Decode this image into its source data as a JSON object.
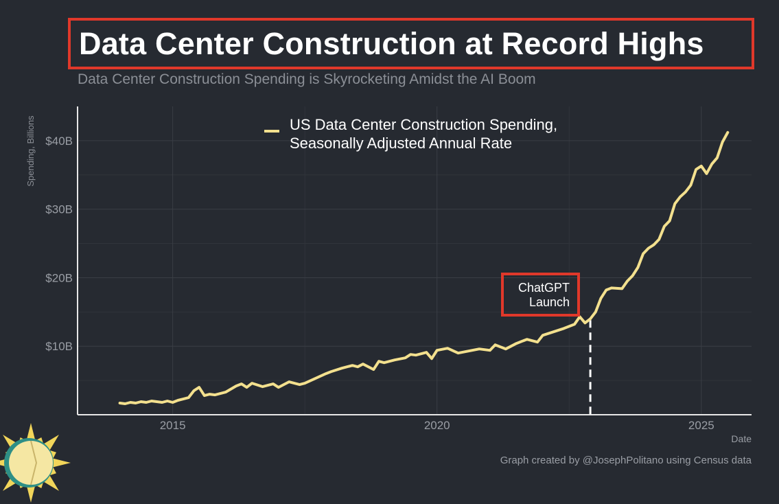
{
  "title": "Data Center Construction at Record Highs",
  "subtitle": "Data Center Construction Spending is Skyrocketing Amidst the AI Boom",
  "credit": "Graph created by @JosephPolitano using Census data",
  "colors": {
    "background": "#262a31",
    "line": "#f3e08e",
    "highlight": "#e0382a",
    "grid": "#3a3e45",
    "axis_text": "#9a9ea5"
  },
  "chart_data": {
    "type": "line",
    "title": "Data Center Construction at Record Highs",
    "xlabel": "Date",
    "ylabel": "Spending, Billions",
    "xlim": [
      2013.2,
      2025.95
    ],
    "ylim": [
      0,
      45
    ],
    "x_ticks": [
      2015,
      2020,
      2025
    ],
    "x_tick_labels": [
      "2015",
      "2020",
      "2025"
    ],
    "y_ticks": [
      10,
      20,
      30,
      40
    ],
    "y_tick_labels": [
      "$10B",
      "$20B",
      "$30B",
      "$40B"
    ],
    "legend": {
      "position": "top-center",
      "lines": [
        "US Data Center Construction Spending,",
        "Seasonally Adjusted Annual Rate"
      ]
    },
    "annotation": {
      "x": 2022.9,
      "lines": [
        "ChatGPT",
        "Launch"
      ]
    },
    "series": [
      {
        "name": "US Data Center Construction Spending, Seasonally Adjusted Annual Rate",
        "x": [
          2014.0,
          2014.1,
          2014.2,
          2014.3,
          2014.4,
          2014.5,
          2014.6,
          2014.7,
          2014.8,
          2014.9,
          2015.0,
          2015.1,
          2015.2,
          2015.3,
          2015.4,
          2015.5,
          2015.6,
          2015.7,
          2015.8,
          2016.0,
          2016.2,
          2016.3,
          2016.4,
          2016.5,
          2016.7,
          2016.9,
          2017.0,
          2017.2,
          2017.4,
          2017.5,
          2017.7,
          2017.9,
          2018.0,
          2018.2,
          2018.4,
          2018.5,
          2018.6,
          2018.8,
          2018.9,
          2019.0,
          2019.2,
          2019.4,
          2019.5,
          2019.6,
          2019.8,
          2019.9,
          2020.0,
          2020.2,
          2020.4,
          2020.6,
          2020.8,
          2021.0,
          2021.1,
          2021.3,
          2021.5,
          2021.7,
          2021.9,
          2022.0,
          2022.2,
          2022.4,
          2022.6,
          2022.7,
          2022.8,
          2022.9,
          2023.0,
          2023.1,
          2023.2,
          2023.3,
          2023.5,
          2023.6,
          2023.7,
          2023.8,
          2023.9,
          2024.0,
          2024.1,
          2024.2,
          2024.3,
          2024.4,
          2024.5,
          2024.6,
          2024.7,
          2024.8,
          2024.9,
          2025.0,
          2025.1,
          2025.2,
          2025.3,
          2025.4,
          2025.5
        ],
        "values": [
          1.7,
          1.6,
          1.8,
          1.7,
          1.9,
          1.8,
          2.0,
          1.9,
          1.8,
          2.0,
          1.8,
          2.1,
          2.3,
          2.5,
          3.5,
          4.0,
          2.8,
          3.0,
          2.9,
          3.3,
          4.2,
          4.5,
          4.0,
          4.6,
          4.1,
          4.5,
          4.0,
          4.8,
          4.4,
          4.6,
          5.3,
          6.0,
          6.3,
          6.8,
          7.2,
          7.0,
          7.4,
          6.6,
          7.8,
          7.6,
          8.0,
          8.3,
          8.8,
          8.7,
          9.1,
          8.2,
          9.4,
          9.7,
          9.0,
          9.3,
          9.6,
          9.4,
          10.2,
          9.6,
          10.4,
          11.0,
          10.6,
          11.6,
          12.1,
          12.6,
          13.2,
          14.3,
          13.4,
          14.0,
          15.0,
          17.0,
          18.2,
          18.5,
          18.4,
          19.5,
          20.3,
          21.5,
          23.5,
          24.3,
          24.8,
          25.6,
          27.5,
          28.3,
          30.8,
          31.8,
          32.5,
          33.5,
          35.8,
          36.3,
          35.2,
          36.6,
          37.5,
          39.8,
          41.2
        ]
      }
    ]
  }
}
